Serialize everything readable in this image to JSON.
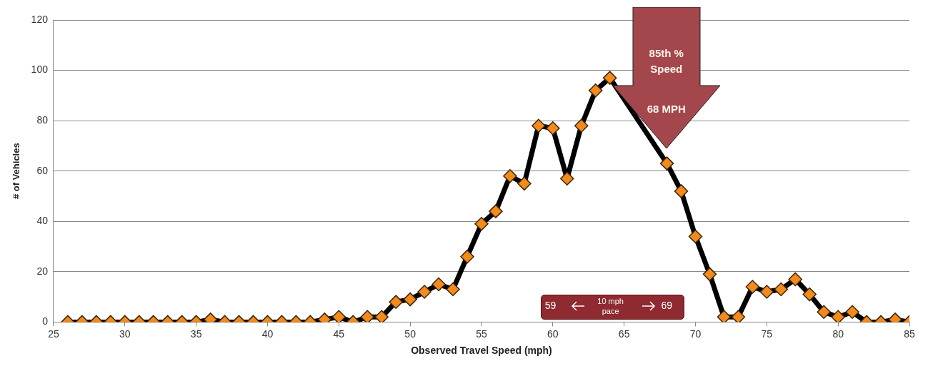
{
  "chart_data": {
    "type": "line",
    "xlabel": "Observed Travel Speed (mph)",
    "ylabel": "# of Vehicles",
    "x": [
      26,
      27,
      28,
      29,
      30,
      31,
      32,
      33,
      34,
      35,
      36,
      37,
      38,
      39,
      40,
      41,
      42,
      43,
      44,
      45,
      46,
      47,
      48,
      49,
      50,
      51,
      52,
      53,
      54,
      55,
      56,
      57,
      58,
      59,
      60,
      61,
      62,
      63,
      64,
      65,
      66,
      67,
      68,
      69,
      70,
      71,
      72,
      73,
      74,
      75,
      76,
      77,
      78,
      79,
      80,
      81,
      82,
      83,
      84,
      85
    ],
    "series": [
      {
        "color": "#000000",
        "values": [
          0,
          0,
          0,
          0,
          0,
          0,
          0,
          0,
          0,
          0,
          1,
          0,
          0,
          0,
          0,
          0,
          0,
          0,
          1,
          2,
          0,
          2,
          2,
          8,
          9,
          12,
          15,
          13,
          26,
          39,
          44,
          58,
          55,
          78,
          77,
          57,
          78,
          92,
          97,
          null,
          null,
          null,
          63,
          52,
          34,
          19,
          2,
          2,
          14,
          12,
          13,
          17,
          11,
          4,
          2,
          4,
          0,
          0,
          1,
          0
        ]
      }
    ],
    "xlim": [
      25,
      85
    ],
    "xticks": [
      25,
      30,
      35,
      40,
      45,
      50,
      55,
      60,
      65,
      70,
      75,
      80,
      85
    ],
    "ylim": [
      0,
      120
    ],
    "yticks": [
      0,
      20,
      40,
      60,
      80,
      100,
      120
    ],
    "grid": "y",
    "legend": false,
    "marker": "diamond",
    "line_style": "solid",
    "annotations": [
      "85th % Speed",
      "68 MPH",
      "59",
      "10 mph pace",
      "69"
    ]
  }
}
